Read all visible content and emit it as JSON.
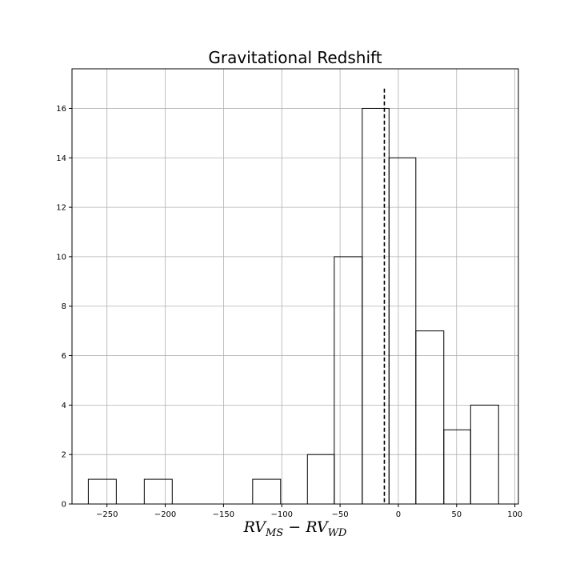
{
  "chart_data": {
    "type": "histogram",
    "title": "Gravitational Redshift",
    "xlabel": {
      "main1": "RV",
      "sub1": "MS",
      "op": " − ",
      "main2": "RV",
      "sub2": "WD"
    },
    "ylabel": "",
    "xlim": [
      -280,
      103
    ],
    "ylim": [
      0,
      17.6
    ],
    "xticks": [
      -250,
      -200,
      -150,
      -100,
      -50,
      0,
      50,
      100
    ],
    "xtick_labels": [
      "−250",
      "−200",
      "−150",
      "−100",
      "−50",
      "0",
      "50",
      "100"
    ],
    "yticks": [
      0,
      2,
      4,
      6,
      8,
      10,
      12,
      14,
      16
    ],
    "ytick_labels": [
      "0",
      "2",
      "4",
      "6",
      "8",
      "10",
      "12",
      "14",
      "16"
    ],
    "bins": [
      {
        "x0": -266,
        "x1": -242,
        "count": 1
      },
      {
        "x0": -218,
        "x1": -194,
        "count": 1
      },
      {
        "x0": -125,
        "x1": -101,
        "count": 1
      },
      {
        "x0": -78,
        "x1": -55,
        "count": 2
      },
      {
        "x0": -55,
        "x1": -31,
        "count": 10
      },
      {
        "x0": -31,
        "x1": -8,
        "count": 16
      },
      {
        "x0": -8,
        "x1": 15,
        "count": 14
      },
      {
        "x0": 15,
        "x1": 39,
        "count": 7
      },
      {
        "x0": 39,
        "x1": 62,
        "count": 3
      },
      {
        "x0": 62,
        "x1": 86,
        "count": 4
      }
    ],
    "vline": {
      "x": -12,
      "ymax": 16.8,
      "style": "dashed"
    },
    "grid": true,
    "colors": {
      "edge": "#000000",
      "grid": "#b0b0b0",
      "vline": "#000000"
    }
  }
}
